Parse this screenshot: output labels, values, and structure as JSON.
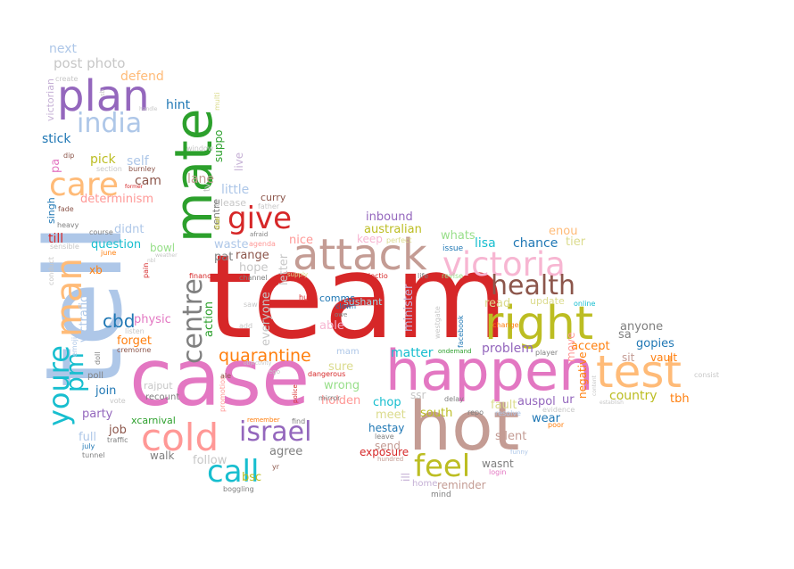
{
  "words": [
    {
      "text": "team",
      "color": "#d62728"
    },
    {
      "text": "tell",
      "color": "#aec7e8"
    },
    {
      "text": "case",
      "color": "#e377c2"
    },
    {
      "text": "hot",
      "color": "#c49c94"
    },
    {
      "text": "happen",
      "color": "#e377c2"
    },
    {
      "text": "mate",
      "color": "#2ca02c"
    },
    {
      "text": "attack",
      "color": "#c49c94"
    },
    {
      "text": "right",
      "color": "#bcbd22"
    },
    {
      "text": "test",
      "color": "#ffbb78"
    },
    {
      "text": "victoria",
      "color": "#f7b6d2"
    },
    {
      "text": "plan",
      "color": "#9467bd"
    },
    {
      "text": "cold",
      "color": "#ff9896"
    },
    {
      "text": "man",
      "color": "#ffbb78"
    },
    {
      "text": "care",
      "color": "#ffbb78"
    },
    {
      "text": "youre",
      "color": "#17becf"
    },
    {
      "text": "centre",
      "color": "#7f7f7f"
    },
    {
      "text": "health",
      "color": "#8c564b"
    },
    {
      "text": "israel",
      "color": "#9467bd"
    },
    {
      "text": "give",
      "color": "#d62728"
    },
    {
      "text": "feel",
      "color": "#bcbd22"
    },
    {
      "text": "call",
      "color": "#17becf"
    },
    {
      "text": "india",
      "color": "#aec7e8"
    },
    {
      "text": "pm",
      "color": "#17becf"
    },
    {
      "text": "quarantine",
      "color": "#ff7f0e"
    },
    {
      "text": "cbd",
      "color": "#1f77b4"
    },
    {
      "text": "post photo",
      "color": "#c7c7c7"
    },
    {
      "text": "next",
      "color": "#aec7e8"
    },
    {
      "text": "defend",
      "color": "#ffbb78"
    },
    {
      "text": "hint",
      "color": "#1f77b4"
    },
    {
      "text": "stick",
      "color": "#1f77b4"
    },
    {
      "text": "pick",
      "color": "#bcbd22"
    },
    {
      "text": "self",
      "color": "#aec7e8"
    },
    {
      "text": "cam",
      "color": "#8c564b"
    },
    {
      "text": "lane",
      "color": "#c49c94"
    },
    {
      "text": "little",
      "color": "#aec7e8"
    },
    {
      "text": "curry",
      "color": "#8c564b"
    },
    {
      "text": "please",
      "color": "#c7c7c7"
    },
    {
      "text": "determinism",
      "color": "#ff9896"
    },
    {
      "text": "till",
      "color": "#d62728"
    },
    {
      "text": "question",
      "color": "#17becf"
    },
    {
      "text": "didnt",
      "color": "#aec7e8"
    },
    {
      "text": "bowl",
      "color": "#98df8a"
    },
    {
      "text": "waste",
      "color": "#aec7e8"
    },
    {
      "text": "nice",
      "color": "#ff9896"
    },
    {
      "text": "inbound",
      "color": "#9467bd"
    },
    {
      "text": "australian",
      "color": "#bcbd22"
    },
    {
      "text": "whats",
      "color": "#98df8a"
    },
    {
      "text": "enou",
      "color": "#ffbb78"
    },
    {
      "text": "lisa",
      "color": "#17becf"
    },
    {
      "text": "chance",
      "color": "#1f77b4"
    },
    {
      "text": "tier",
      "color": "#dbdb8d"
    },
    {
      "text": "keep",
      "color": "#f7b6d2"
    },
    {
      "text": "hope",
      "color": "#c7c7c7"
    },
    {
      "text": "range",
      "color": "#8c564b"
    },
    {
      "text": "pat",
      "color": "#7f7f7f"
    },
    {
      "text": "letter",
      "color": "#c7c7c7"
    },
    {
      "text": "action",
      "color": "#2ca02c"
    },
    {
      "text": "physic",
      "color": "#e377c2"
    },
    {
      "text": "forget",
      "color": "#ff7f0e"
    },
    {
      "text": "everyone",
      "color": "#c7c7c7"
    },
    {
      "text": "able",
      "color": "#f7b6d2"
    },
    {
      "text": "comms",
      "color": "#1f77b4"
    },
    {
      "text": "sushant",
      "color": "#9edae5"
    },
    {
      "text": "minister",
      "color": "#c5b0d5"
    },
    {
      "text": "read",
      "color": "#dbdb8d"
    },
    {
      "text": "update",
      "color": "#dbdb8d"
    },
    {
      "text": "anyone",
      "color": "#7f7f7f"
    },
    {
      "text": "sa",
      "color": "#7f7f7f"
    },
    {
      "text": "accept",
      "color": "#ff7f0e"
    },
    {
      "text": "gopies",
      "color": "#1f77b4"
    },
    {
      "text": "problem",
      "color": "#9467bd"
    },
    {
      "text": "matter",
      "color": "#17becf"
    },
    {
      "text": "sure",
      "color": "#dbdb8d"
    },
    {
      "text": "wrong",
      "color": "#98df8a"
    },
    {
      "text": "holden",
      "color": "#ff9896"
    },
    {
      "text": "join",
      "color": "#1f77b4"
    },
    {
      "text": "party",
      "color": "#9467bd"
    },
    {
      "text": "job",
      "color": "#8c564b"
    },
    {
      "text": "full",
      "color": "#aec7e8"
    },
    {
      "text": "rajput",
      "color": "#c7c7c7"
    },
    {
      "text": "xcarnival",
      "color": "#2ca02c"
    },
    {
      "text": "recount",
      "color": "#7f7f7f"
    },
    {
      "text": "walk",
      "color": "#7f7f7f"
    },
    {
      "text": "follow",
      "color": "#c7c7c7"
    },
    {
      "text": "bsc",
      "color": "#bcbd22"
    },
    {
      "text": "agree",
      "color": "#7f7f7f"
    },
    {
      "text": "chop",
      "color": "#17becf"
    },
    {
      "text": "meet",
      "color": "#dbdb8d"
    },
    {
      "text": "south",
      "color": "#bcbd22"
    },
    {
      "text": "fault",
      "color": "#dbdb8d"
    },
    {
      "text": "auspol",
      "color": "#9467bd"
    },
    {
      "text": "ur",
      "color": "#9467bd"
    },
    {
      "text": "wear",
      "color": "#1f77b4"
    },
    {
      "text": "silent",
      "color": "#c49c94"
    },
    {
      "text": "hestay",
      "color": "#1f77b4"
    },
    {
      "text": "send",
      "color": "#c49c94"
    },
    {
      "text": "exposure",
      "color": "#d62728"
    },
    {
      "text": "reminder",
      "color": "#c49c94"
    },
    {
      "text": "wasnt",
      "color": "#7f7f7f"
    },
    {
      "text": "country",
      "color": "#bcbd22"
    },
    {
      "text": "tbh",
      "color": "#ff7f0e"
    },
    {
      "text": "sit",
      "color": "#c49c94"
    },
    {
      "text": "vault",
      "color": "#ff7f0e"
    },
    {
      "text": "negative",
      "color": "#ff7f0e"
    },
    {
      "text": "move",
      "color": "#ff9896"
    },
    {
      "text": "victorian",
      "color": "#c5b0d5"
    },
    {
      "text": "pa",
      "color": "#e377c2"
    },
    {
      "text": "singh",
      "color": "#1f77b4"
    },
    {
      "text": "suppo",
      "color": "#2ca02c"
    },
    {
      "text": "live",
      "color": "#c5b0d5"
    },
    {
      "text": "centre",
      "color": "#7f7f7f"
    },
    {
      "text": "victrafic",
      "color": "#aec7e8"
    },
    {
      "text": "xb",
      "color": "#ff7f0e"
    },
    {
      "text": "poll",
      "color": "#7f7f7f"
    },
    {
      "text": "ssr",
      "color": "#c7c7c7"
    },
    {
      "text": "ill",
      "color": "#c5b0d5"
    },
    {
      "text": "home",
      "color": "#c5b0d5"
    },
    {
      "text": "mind",
      "color": "#7f7f7f"
    },
    {
      "text": "create",
      "color": "#c7c7c7"
    },
    {
      "text": "sb",
      "color": "#c7c7c7"
    },
    {
      "text": "window",
      "color": "#c7c7c7"
    },
    {
      "text": "multi",
      "color": "#dbdb8d"
    },
    {
      "text": "handle",
      "color": "#c7c7c7"
    },
    {
      "text": "dip",
      "color": "#8c564b"
    },
    {
      "text": "section",
      "color": "#c7c7c7"
    },
    {
      "text": "burnley",
      "color": "#8c564b"
    },
    {
      "text": "former",
      "color": "#d62728"
    },
    {
      "text": "fade",
      "color": "#8c564b"
    },
    {
      "text": "heavy",
      "color": "#7f7f7f"
    },
    {
      "text": "course",
      "color": "#7f7f7f"
    },
    {
      "text": "sensible",
      "color": "#c7c7c7"
    },
    {
      "text": "june",
      "color": "#ff7f0e"
    },
    {
      "text": "weather",
      "color": "#c7c7c7"
    },
    {
      "text": "conduct",
      "color": "#c7c7c7"
    },
    {
      "text": "pain",
      "color": "#d62728"
    },
    {
      "text": "finance",
      "color": "#d62728"
    },
    {
      "text": "channel",
      "color": "#7f7f7f"
    },
    {
      "text": "agenda",
      "color": "#ff9896"
    },
    {
      "text": "father",
      "color": "#c7c7c7"
    },
    {
      "text": "due",
      "color": "#bcbd22"
    },
    {
      "text": "tv",
      "color": "#c7c7c7"
    },
    {
      "text": "afraid",
      "color": "#7f7f7f"
    },
    {
      "text": "perfect",
      "color": "#dbdb8d"
    },
    {
      "text": "issue",
      "color": "#1f77b4"
    },
    {
      "text": "clown",
      "color": "#1f77b4"
    },
    {
      "text": "electio",
      "color": "#d62728"
    },
    {
      "text": "life",
      "color": "#7f7f7f"
    },
    {
      "text": "revise",
      "color": "#98df8a"
    },
    {
      "text": "hug",
      "color": "#d62728"
    },
    {
      "text": "owe",
      "color": "#7f7f7f"
    },
    {
      "text": "mam",
      "color": "#aec7e8"
    },
    {
      "text": "westgate",
      "color": "#c7c7c7"
    },
    {
      "text": "facebook",
      "color": "#1f77b4"
    },
    {
      "text": "ondemand",
      "color": "#2ca02c"
    },
    {
      "text": "delay",
      "color": "#7f7f7f"
    },
    {
      "text": "change",
      "color": "#ff7f0e"
    },
    {
      "text": "online",
      "color": "#17becf"
    },
    {
      "text": "player",
      "color": "#7f7f7f"
    },
    {
      "text": "evidence",
      "color": "#c7c7c7"
    },
    {
      "text": "content",
      "color": "#c7c7c7"
    },
    {
      "text": "establish",
      "color": "#c7c7c7"
    },
    {
      "text": "consist",
      "color": "#c7c7c7"
    },
    {
      "text": "poor",
      "color": "#ff7f0e"
    },
    {
      "text": "repo",
      "color": "#7f7f7f"
    },
    {
      "text": "resolve",
      "color": "#aec7e8"
    },
    {
      "text": "funny",
      "color": "#aec7e8"
    },
    {
      "text": "login",
      "color": "#e377c2"
    },
    {
      "text": "hundred",
      "color": "#c49c94"
    },
    {
      "text": "leave",
      "color": "#7f7f7f"
    },
    {
      "text": "find",
      "color": "#7f7f7f"
    },
    {
      "text": "remember",
      "color": "#ff7f0e"
    },
    {
      "text": "mirror",
      "color": "#7f7f7f"
    },
    {
      "text": "dangerous",
      "color": "#d62728"
    },
    {
      "text": "police",
      "color": "#d62728"
    },
    {
      "text": "yr",
      "color": "#8c564b"
    },
    {
      "text": "boggling",
      "color": "#7f7f7f"
    },
    {
      "text": "promotion",
      "color": "#ff9896"
    },
    {
      "text": "ale",
      "color": "#8c564b"
    },
    {
      "text": "traffic",
      "color": "#7f7f7f"
    },
    {
      "text": "july",
      "color": "#1f77b4"
    },
    {
      "text": "tunnel",
      "color": "#7f7f7f"
    },
    {
      "text": "listen",
      "color": "#c7c7c7"
    },
    {
      "text": "cremorne",
      "color": "#8c564b"
    },
    {
      "text": "saw",
      "color": "#c7c7c7"
    },
    {
      "text": "add",
      "color": "#c7c7c7"
    },
    {
      "text": "vote",
      "color": "#c7c7c7"
    },
    {
      "text": "emoji",
      "color": "#aec7e8"
    },
    {
      "text": "doll",
      "color": "#7f7f7f"
    },
    {
      "text": "nbl",
      "color": "#c7c7c7"
    },
    {
      "text": "ego",
      "color": "#c7c7c7"
    },
    {
      "text": "supply",
      "color": "#dbdb8d"
    },
    {
      "text": "objectivity",
      "color": "#c7c7c7"
    }
  ]
}
